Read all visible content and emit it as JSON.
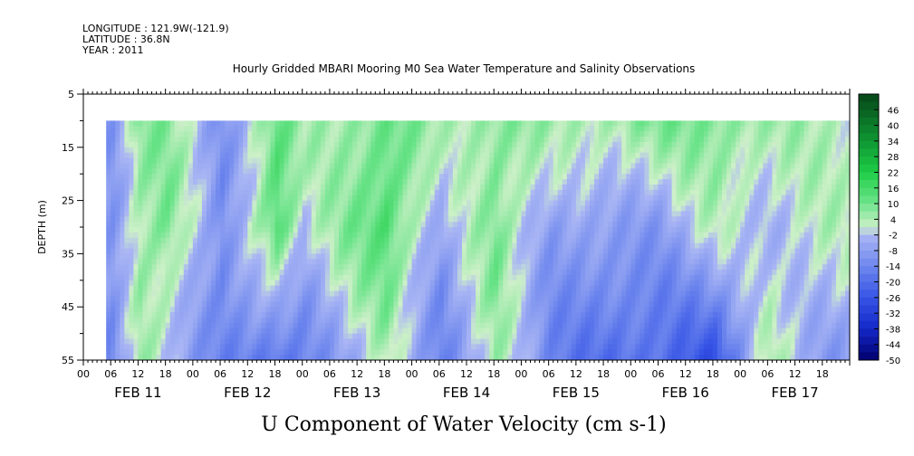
{
  "header": {
    "longitude": "LONGITUDE : 121.9W(-121.9)",
    "latitude": "LATITUDE : 36.8N",
    "year": "YEAR : 2011"
  },
  "chart_data": {
    "type": "heatmap",
    "title": "Hourly Gridded MBARI Mooring M0 Sea Water Temperature and Salinity Observations",
    "xlabel": "U Component of Water Velocity (cm s-1)",
    "ylabel": "DEPTH (m)",
    "ylim": [
      55,
      5
    ],
    "y_ticks": [
      "5",
      "15",
      "25",
      "35",
      "45",
      "55"
    ],
    "x_hour_ticks": [
      "00",
      "06",
      "12",
      "18",
      "00",
      "06",
      "12",
      "18",
      "00",
      "06",
      "12",
      "18",
      "00",
      "06",
      "12",
      "18",
      "00",
      "06",
      "12",
      "18",
      "00",
      "06",
      "12",
      "18",
      "00",
      "06",
      "12",
      "18"
    ],
    "x_day_labels": [
      "FEB 11",
      "FEB 12",
      "FEB 13",
      "FEB 14",
      "FEB 15",
      "FEB 16",
      "FEB 17"
    ],
    "x_range_days": [
      11.0,
      18.0
    ],
    "data_start": "FEB 11 05:00",
    "data_depth_range": [
      10,
      55
    ],
    "colorbar": {
      "labels": [
        "46",
        "40",
        "34",
        "28",
        "22",
        "16",
        "10",
        "4",
        "-2",
        "-8",
        "-14",
        "-20",
        "-26",
        "-32",
        "-38",
        "-44",
        "-50"
      ],
      "min": -50,
      "max": 52,
      "step": 3
    },
    "colors": {
      "green": "#28d24e",
      "blue": "#3c64e6",
      "light_blue": "#a8b6f4"
    },
    "velocity_samples": [
      {
        "day": "FEB 11",
        "hour": 6,
        "surface": -8,
        "mid": -10,
        "bottom": -14
      },
      {
        "day": "FEB 11",
        "hour": 12,
        "surface": 8,
        "mid": 6,
        "bottom": 4
      },
      {
        "day": "FEB 11",
        "hour": 18,
        "surface": 6,
        "mid": 10,
        "bottom": -2
      },
      {
        "day": "FEB 12",
        "hour": 6,
        "surface": -10,
        "mid": -14,
        "bottom": -14
      },
      {
        "day": "FEB 12",
        "hour": 18,
        "surface": 10,
        "mid": 16,
        "bottom": -20
      },
      {
        "day": "FEB 13",
        "hour": 0,
        "surface": 4,
        "mid": -2,
        "bottom": -14
      },
      {
        "day": "FEB 13",
        "hour": 18,
        "surface": 10,
        "mid": 16,
        "bottom": 2
      },
      {
        "day": "FEB 14",
        "hour": 6,
        "surface": 4,
        "mid": -8,
        "bottom": -14
      },
      {
        "day": "FEB 14",
        "hour": 18,
        "surface": 8,
        "mid": 10,
        "bottom": 4
      },
      {
        "day": "FEB 15",
        "hour": 6,
        "surface": 4,
        "mid": -8,
        "bottom": -14
      },
      {
        "day": "FEB 15",
        "hour": 18,
        "surface": 6,
        "mid": -8,
        "bottom": -20
      },
      {
        "day": "FEB 16",
        "hour": 6,
        "surface": 8,
        "mid": -8,
        "bottom": -20
      },
      {
        "day": "FEB 16",
        "hour": 18,
        "surface": 10,
        "mid": 2,
        "bottom": -26
      },
      {
        "day": "FEB 17",
        "hour": 6,
        "surface": 4,
        "mid": -2,
        "bottom": 4
      },
      {
        "day": "FEB 17",
        "hour": 18,
        "surface": 4,
        "mid": 2,
        "bottom": -8
      }
    ]
  }
}
